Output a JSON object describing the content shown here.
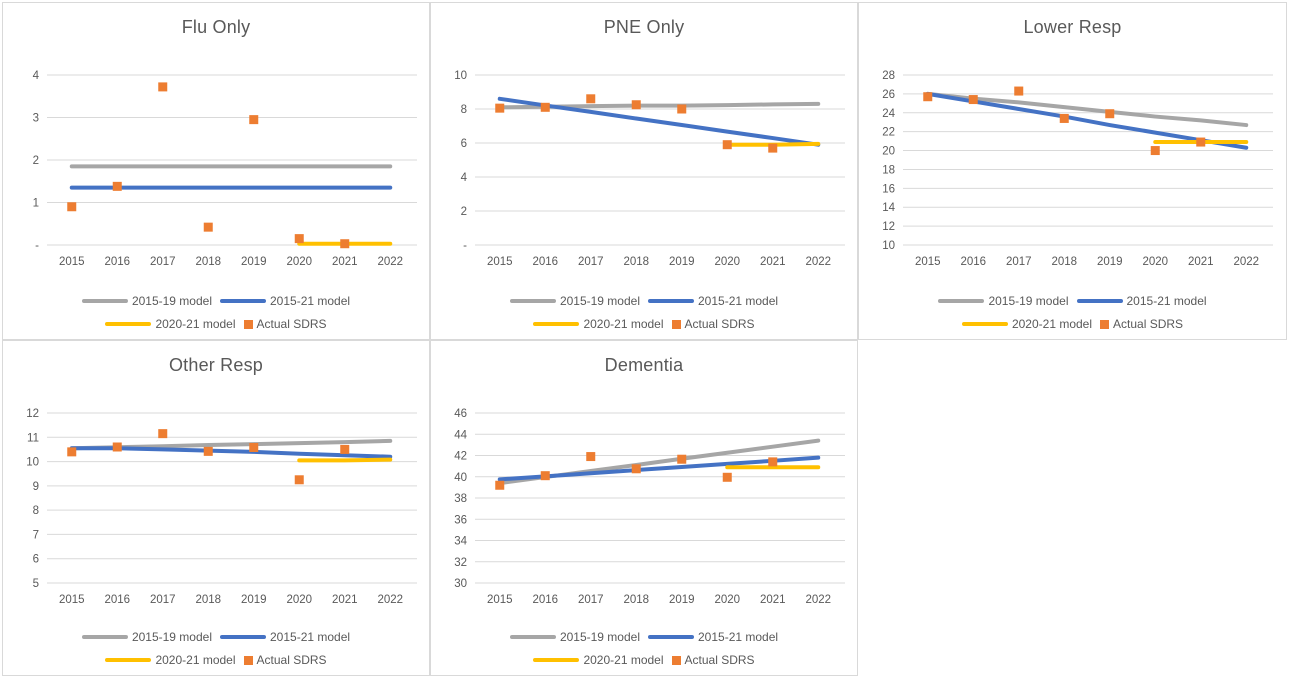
{
  "page": {
    "background": "#ffffff"
  },
  "colors": {
    "grid": "#d9d9d9",
    "panel_border": "#d9d9d9",
    "text": "#595959",
    "series_gray": "#a6a6a6",
    "series_blue": "#4472c4",
    "series_yellow": "#ffc000",
    "series_orange": "#ed7d31"
  },
  "chart_data": [
    {
      "type": "line",
      "title": "Flu Only",
      "categories": [
        "2015",
        "2016",
        "2017",
        "2018",
        "2019",
        "2020",
        "2021",
        "2022"
      ],
      "ylim": [
        0,
        4
      ],
      "grid": true,
      "legend_position": "bottom",
      "yticks": [
        {
          "value": 0,
          "label": "-"
        },
        {
          "value": 1,
          "label": "1"
        },
        {
          "value": 2,
          "label": "2"
        },
        {
          "value": 3,
          "label": "3"
        },
        {
          "value": 4,
          "label": "4"
        }
      ],
      "series": [
        {
          "name": "2015-19 model",
          "color": "#a6a6a6",
          "marker": "line",
          "x": [
            "2015",
            "2016",
            "2017",
            "2018",
            "2019",
            "2020",
            "2021",
            "2022"
          ],
          "values": [
            1.85,
            1.85,
            1.85,
            1.85,
            1.85,
            1.85,
            1.85,
            1.85
          ]
        },
        {
          "name": "2015-21 model",
          "color": "#4472c4",
          "marker": "line",
          "x": [
            "2015",
            "2016",
            "2017",
            "2018",
            "2019",
            "2020",
            "2021",
            "2022"
          ],
          "values": [
            1.35,
            1.35,
            1.35,
            1.35,
            1.35,
            1.35,
            1.35,
            1.35
          ]
        },
        {
          "name": "2020-21 model",
          "color": "#ffc000",
          "marker": "line",
          "x": [
            "2020",
            "2021",
            "2022"
          ],
          "values": [
            0.03,
            0.03,
            0.03
          ]
        },
        {
          "name": "Actual SDRS",
          "color": "#ed7d31",
          "marker": "square",
          "x": [
            "2015",
            "2016",
            "2017",
            "2018",
            "2019",
            "2020",
            "2021"
          ],
          "values": [
            0.9,
            1.38,
            3.72,
            0.42,
            2.95,
            0.15,
            0.03
          ]
        }
      ]
    },
    {
      "type": "line",
      "title": "PNE Only",
      "categories": [
        "2015",
        "2016",
        "2017",
        "2018",
        "2019",
        "2020",
        "2021",
        "2022"
      ],
      "ylim": [
        0,
        10
      ],
      "grid": true,
      "legend_position": "bottom",
      "yticks": [
        {
          "value": 0,
          "label": "-"
        },
        {
          "value": 2,
          "label": "2"
        },
        {
          "value": 4,
          "label": "4"
        },
        {
          "value": 6,
          "label": "6"
        },
        {
          "value": 8,
          "label": "8"
        },
        {
          "value": 10,
          "label": "10"
        }
      ],
      "series": [
        {
          "name": "2015-19 model",
          "color": "#a6a6a6",
          "marker": "line",
          "x": [
            "2015",
            "2016",
            "2017",
            "2018",
            "2019",
            "2020",
            "2021",
            "2022"
          ],
          "values": [
            8.1,
            8.13,
            8.17,
            8.2,
            8.2,
            8.23,
            8.27,
            8.3
          ]
        },
        {
          "name": "2015-21 model",
          "color": "#4472c4",
          "marker": "line",
          "x": [
            "2015",
            "2016",
            "2017",
            "2018",
            "2019",
            "2020",
            "2021",
            "2022"
          ],
          "values": [
            8.6,
            8.21,
            7.83,
            7.44,
            7.06,
            6.67,
            6.29,
            5.9
          ]
        },
        {
          "name": "2020-21 model",
          "color": "#ffc000",
          "marker": "line",
          "x": [
            "2020",
            "2021",
            "2022"
          ],
          "values": [
            5.9,
            5.9,
            5.95
          ]
        },
        {
          "name": "Actual SDRS",
          "color": "#ed7d31",
          "marker": "square",
          "x": [
            "2015",
            "2016",
            "2017",
            "2018",
            "2019",
            "2020",
            "2021"
          ],
          "values": [
            8.05,
            8.1,
            8.6,
            8.25,
            8.0,
            5.9,
            5.7
          ]
        }
      ]
    },
    {
      "type": "line",
      "title": "Lower Resp",
      "categories": [
        "2015",
        "2016",
        "2017",
        "2018",
        "2019",
        "2020",
        "2021",
        "2022"
      ],
      "ylim": [
        10,
        28
      ],
      "grid": true,
      "legend_position": "bottom",
      "yticks": [
        {
          "value": 10,
          "label": "10"
        },
        {
          "value": 12,
          "label": "12"
        },
        {
          "value": 14,
          "label": "14"
        },
        {
          "value": 16,
          "label": "16"
        },
        {
          "value": 18,
          "label": "18"
        },
        {
          "value": 20,
          "label": "20"
        },
        {
          "value": 22,
          "label": "22"
        },
        {
          "value": 24,
          "label": "24"
        },
        {
          "value": 26,
          "label": "26"
        },
        {
          "value": 28,
          "label": "28"
        }
      ],
      "series": [
        {
          "name": "2015-19 model",
          "color": "#a6a6a6",
          "marker": "line",
          "x": [
            "2015",
            "2016",
            "2017",
            "2018",
            "2019",
            "2020",
            "2021",
            "2022"
          ],
          "values": [
            26.0,
            25.5,
            25.1,
            24.6,
            24.1,
            23.6,
            23.2,
            22.7
          ]
        },
        {
          "name": "2015-21 model",
          "color": "#4472c4",
          "marker": "line",
          "x": [
            "2015",
            "2016",
            "2017",
            "2018",
            "2019",
            "2020",
            "2021",
            "2022"
          ],
          "values": [
            26.0,
            25.2,
            24.4,
            23.6,
            22.7,
            21.9,
            21.1,
            20.3
          ]
        },
        {
          "name": "2020-21 model",
          "color": "#ffc000",
          "marker": "line",
          "x": [
            "2020",
            "2021",
            "2022"
          ],
          "values": [
            20.9,
            20.9,
            20.9
          ]
        },
        {
          "name": "Actual SDRS",
          "color": "#ed7d31",
          "marker": "square",
          "x": [
            "2015",
            "2016",
            "2017",
            "2018",
            "2019",
            "2020",
            "2021"
          ],
          "values": [
            25.7,
            25.4,
            26.3,
            23.4,
            23.9,
            20.0,
            20.9
          ]
        }
      ]
    },
    {
      "type": "line",
      "title": "Other Resp",
      "categories": [
        "2015",
        "2016",
        "2017",
        "2018",
        "2019",
        "2020",
        "2021",
        "2022"
      ],
      "ylim": [
        5,
        12
      ],
      "grid": true,
      "legend_position": "bottom",
      "yticks": [
        {
          "value": 5,
          "label": "5"
        },
        {
          "value": 6,
          "label": "6"
        },
        {
          "value": 7,
          "label": "7"
        },
        {
          "value": 8,
          "label": "8"
        },
        {
          "value": 9,
          "label": "9"
        },
        {
          "value": 10,
          "label": "10"
        },
        {
          "value": 11,
          "label": "11"
        },
        {
          "value": 12,
          "label": "12"
        }
      ],
      "series": [
        {
          "name": "2015-19 model",
          "color": "#a6a6a6",
          "marker": "line",
          "x": [
            "2015",
            "2016",
            "2017",
            "2018",
            "2019",
            "2020",
            "2021",
            "2022"
          ],
          "values": [
            10.55,
            10.59,
            10.63,
            10.68,
            10.72,
            10.76,
            10.8,
            10.85
          ]
        },
        {
          "name": "2015-21 model",
          "color": "#4472c4",
          "marker": "line",
          "x": [
            "2015",
            "2016",
            "2017",
            "2018",
            "2019",
            "2020",
            "2021",
            "2022"
          ],
          "values": [
            10.55,
            10.55,
            10.5,
            10.45,
            10.4,
            10.32,
            10.26,
            10.2
          ]
        },
        {
          "name": "2020-21 model",
          "color": "#ffc000",
          "marker": "line",
          "x": [
            "2020",
            "2021",
            "2022"
          ],
          "values": [
            10.05,
            10.05,
            10.08
          ]
        },
        {
          "name": "Actual SDRS",
          "color": "#ed7d31",
          "marker": "square",
          "x": [
            "2015",
            "2016",
            "2017",
            "2018",
            "2019",
            "2020",
            "2021"
          ],
          "values": [
            10.4,
            10.6,
            11.15,
            10.42,
            10.58,
            9.25,
            10.5
          ]
        }
      ]
    },
    {
      "type": "line",
      "title": "Dementia",
      "categories": [
        "2015",
        "2016",
        "2017",
        "2018",
        "2019",
        "2020",
        "2021",
        "2022"
      ],
      "ylim": [
        30,
        46
      ],
      "grid": true,
      "legend_position": "bottom",
      "yticks": [
        {
          "value": 30,
          "label": "30"
        },
        {
          "value": 32,
          "label": "32"
        },
        {
          "value": 34,
          "label": "34"
        },
        {
          "value": 36,
          "label": "36"
        },
        {
          "value": 38,
          "label": "38"
        },
        {
          "value": 40,
          "label": "40"
        },
        {
          "value": 42,
          "label": "42"
        },
        {
          "value": 44,
          "label": "44"
        },
        {
          "value": 46,
          "label": "46"
        }
      ],
      "series": [
        {
          "name": "2015-19 model",
          "color": "#a6a6a6",
          "marker": "line",
          "x": [
            "2015",
            "2016",
            "2017",
            "2018",
            "2019",
            "2020",
            "2021",
            "2022"
          ],
          "values": [
            39.4,
            39.97,
            40.54,
            41.11,
            41.69,
            42.26,
            42.83,
            43.4
          ]
        },
        {
          "name": "2015-21 model",
          "color": "#4472c4",
          "marker": "line",
          "x": [
            "2015",
            "2016",
            "2017",
            "2018",
            "2019",
            "2020",
            "2021",
            "2022"
          ],
          "values": [
            39.75,
            40.04,
            40.33,
            40.63,
            40.92,
            41.21,
            41.5,
            41.8
          ]
        },
        {
          "name": "2020-21 model",
          "color": "#ffc000",
          "marker": "line",
          "x": [
            "2020",
            "2021",
            "2022"
          ],
          "values": [
            40.9,
            40.9,
            40.9
          ]
        },
        {
          "name": "Actual SDRS",
          "color": "#ed7d31",
          "marker": "square",
          "x": [
            "2015",
            "2016",
            "2017",
            "2018",
            "2019",
            "2020",
            "2021"
          ],
          "values": [
            39.2,
            40.1,
            41.9,
            40.75,
            41.65,
            39.95,
            41.4
          ]
        }
      ]
    }
  ]
}
